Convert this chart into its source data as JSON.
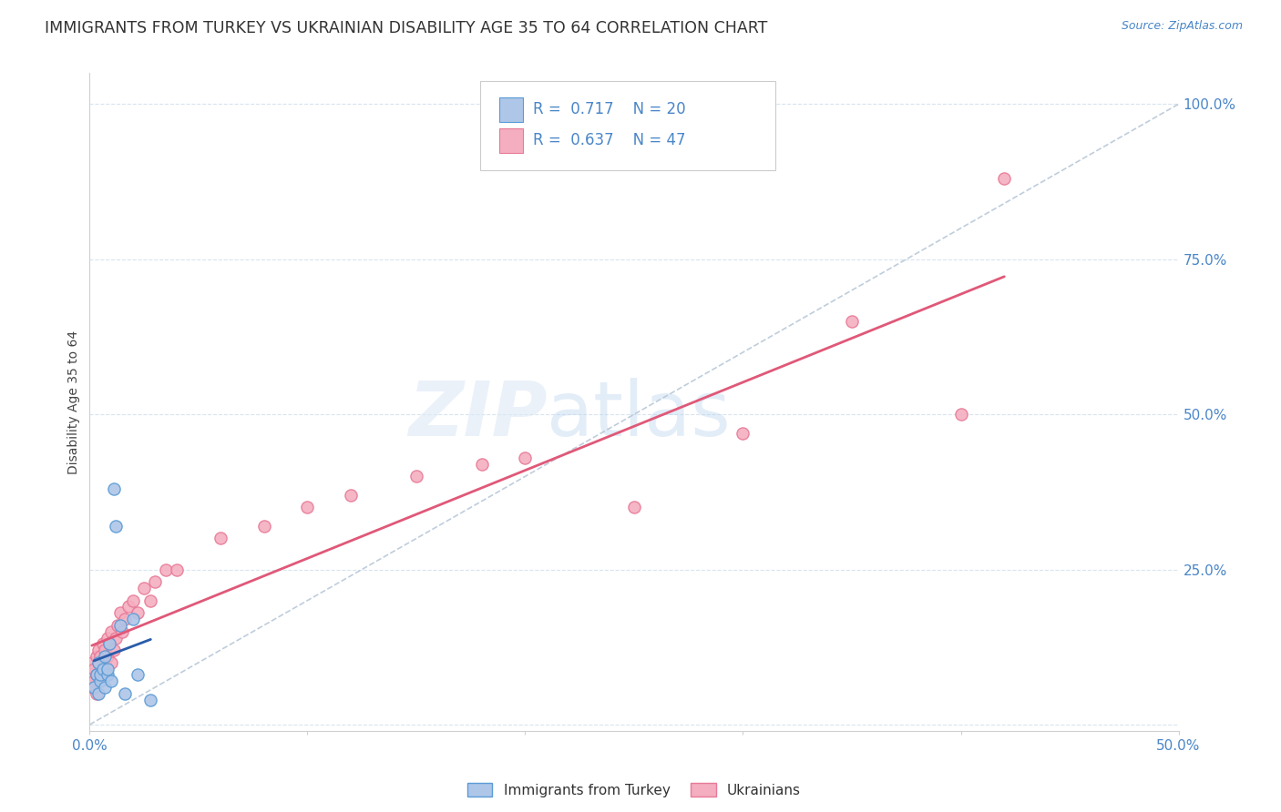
{
  "title": "IMMIGRANTS FROM TURKEY VS UKRAINIAN DISABILITY AGE 35 TO 64 CORRELATION CHART",
  "source": "Source: ZipAtlas.com",
  "ylabel": "Disability Age 35 to 64",
  "xlim": [
    0.0,
    0.5
  ],
  "ylim": [
    -0.01,
    1.05
  ],
  "xticks": [
    0.0,
    0.1,
    0.2,
    0.3,
    0.4,
    0.5
  ],
  "xtick_labels": [
    "0.0%",
    "",
    "",
    "",
    "",
    "50.0%"
  ],
  "yticks": [
    0.0,
    0.25,
    0.5,
    0.75,
    1.0
  ],
  "ytick_labels_right": [
    "",
    "25.0%",
    "50.0%",
    "75.0%",
    "100.0%"
  ],
  "turkey_color": "#aec6e8",
  "turkey_edge_color": "#5b9bd5",
  "ukraine_color": "#f4aec0",
  "ukraine_edge_color": "#e87a97",
  "trendline_turkey_color": "#2a5caa",
  "trendline_ukraine_color": "#e05878",
  "diagonal_color": "#b8c8d8",
  "R_turkey": 0.717,
  "N_turkey": 20,
  "R_ukraine": 0.637,
  "N_ukraine": 47,
  "legend_turkey_label": "Immigrants from Turkey",
  "legend_ukraine_label": "Ukrainians",
  "watermark_zip": "ZIP",
  "watermark_atlas": "atlas",
  "background_color": "#ffffff",
  "grid_color": "#d8e4f0",
  "title_fontsize": 12.5,
  "axis_label_fontsize": 10,
  "tick_label_fontsize": 11,
  "tick_label_color": "#4a86c8",
  "marker_size": 90,
  "turkey_x": [
    0.002,
    0.003,
    0.004,
    0.004,
    0.005,
    0.005,
    0.006,
    0.007,
    0.007,
    0.008,
    0.008,
    0.009,
    0.01,
    0.011,
    0.012,
    0.014,
    0.016,
    0.02,
    0.022,
    0.028
  ],
  "turkey_y": [
    0.06,
    0.08,
    0.05,
    0.1,
    0.07,
    0.08,
    0.09,
    0.06,
    0.11,
    0.08,
    0.09,
    0.13,
    0.07,
    0.38,
    0.32,
    0.16,
    0.05,
    0.17,
    0.08,
    0.04
  ],
  "ukraine_x": [
    0.001,
    0.001,
    0.001,
    0.002,
    0.002,
    0.003,
    0.003,
    0.003,
    0.004,
    0.004,
    0.005,
    0.005,
    0.006,
    0.006,
    0.007,
    0.007,
    0.008,
    0.008,
    0.009,
    0.01,
    0.01,
    0.011,
    0.012,
    0.013,
    0.014,
    0.015,
    0.016,
    0.018,
    0.02,
    0.022,
    0.025,
    0.028,
    0.03,
    0.035,
    0.04,
    0.06,
    0.08,
    0.1,
    0.12,
    0.15,
    0.18,
    0.2,
    0.25,
    0.3,
    0.35,
    0.4,
    0.42
  ],
  "ukraine_y": [
    0.06,
    0.08,
    0.1,
    0.07,
    0.09,
    0.05,
    0.11,
    0.08,
    0.1,
    0.12,
    0.08,
    0.11,
    0.09,
    0.13,
    0.1,
    0.12,
    0.14,
    0.11,
    0.13,
    0.1,
    0.15,
    0.12,
    0.14,
    0.16,
    0.18,
    0.15,
    0.17,
    0.19,
    0.2,
    0.18,
    0.22,
    0.2,
    0.23,
    0.25,
    0.25,
    0.3,
    0.32,
    0.35,
    0.37,
    0.4,
    0.42,
    0.43,
    0.35,
    0.47,
    0.65,
    0.5,
    0.88
  ]
}
